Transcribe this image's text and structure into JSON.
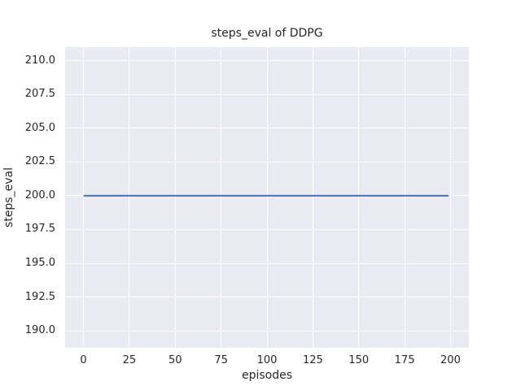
{
  "chart_data": {
    "type": "line",
    "title": "steps_eval of DDPG",
    "xlabel": "episodes",
    "ylabel": "steps_eval",
    "x_ticks": [
      0,
      25,
      50,
      75,
      100,
      125,
      150,
      175,
      200
    ],
    "y_ticks": [
      190.0,
      192.5,
      195.0,
      197.5,
      200.0,
      202.5,
      205.0,
      207.5,
      210.0
    ],
    "y_tick_decimals": 1,
    "xlim": [
      -10,
      210
    ],
    "ylim": [
      188.75,
      211.0
    ],
    "grid": true,
    "legend": "none",
    "series": [
      {
        "name": "DDPG",
        "points": [
          [
            0,
            200
          ],
          [
            199,
            200
          ]
        ],
        "note": "constant steps_eval value of 200 for every evaluated episode 0-199"
      }
    ],
    "colors": {
      "line": "#4c72b0",
      "plot_background": "#eaeaf2",
      "grid": "#ffffff",
      "text": "#262626",
      "figure_background": "#ffffff"
    }
  }
}
